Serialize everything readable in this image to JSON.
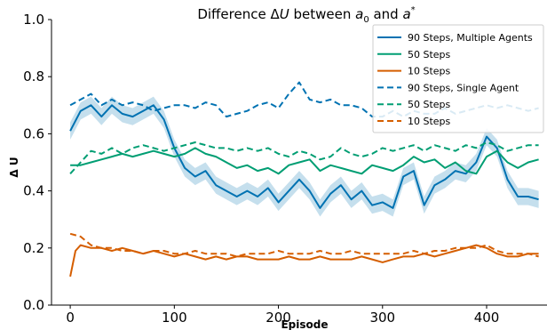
{
  "chart_data": {
    "type": "line",
    "title_parts": {
      "prefix": "Difference ",
      "delta_sym": "Δ",
      "u_sym": "U",
      "between": " between ",
      "a0_base": "a",
      "a0_sub": "0",
      "and": " and ",
      "astar_base": "a",
      "astar_sup": "*"
    },
    "xlabel": "Episode",
    "ylabel": "Δ U",
    "xlim": [
      -18,
      458
    ],
    "ylim": [
      0.0,
      1.0
    ],
    "xticks": [
      0,
      100,
      200,
      300,
      400
    ],
    "yticks": [
      0.0,
      0.2,
      0.4,
      0.6,
      0.8,
      1.0
    ],
    "ytick_labels": [
      "0.0",
      "0.2",
      "0.4",
      "0.6",
      "0.8",
      "1.0"
    ],
    "legend_position": "top-right",
    "colors": {
      "blue": "#0072B2",
      "green": "#009E73",
      "orange": "#D55E00",
      "band": "#9ecae1"
    },
    "series": [
      {
        "name": "90 Steps, Multiple Agents",
        "style": "solid",
        "color": "#0072B2",
        "band": 0.03,
        "x": [
          0,
          10,
          20,
          30,
          40,
          50,
          60,
          70,
          80,
          90,
          100,
          110,
          120,
          130,
          140,
          150,
          160,
          170,
          180,
          190,
          200,
          210,
          220,
          230,
          240,
          250,
          260,
          270,
          280,
          290,
          300,
          310,
          320,
          330,
          340,
          350,
          360,
          370,
          380,
          390,
          400,
          410,
          420,
          430,
          440,
          450
        ],
        "values": [
          0.61,
          0.68,
          0.7,
          0.66,
          0.7,
          0.67,
          0.66,
          0.68,
          0.7,
          0.65,
          0.55,
          0.48,
          0.45,
          0.47,
          0.42,
          0.4,
          0.38,
          0.4,
          0.38,
          0.41,
          0.36,
          0.4,
          0.44,
          0.4,
          0.34,
          0.39,
          0.42,
          0.37,
          0.4,
          0.35,
          0.36,
          0.34,
          0.45,
          0.47,
          0.35,
          0.42,
          0.44,
          0.47,
          0.46,
          0.5,
          0.59,
          0.55,
          0.44,
          0.38,
          0.38,
          0.37
        ]
      },
      {
        "name": "50 Steps",
        "style": "solid",
        "color": "#009E73",
        "x": [
          0,
          10,
          20,
          30,
          40,
          50,
          60,
          70,
          80,
          90,
          100,
          110,
          120,
          130,
          140,
          150,
          160,
          170,
          180,
          190,
          200,
          210,
          220,
          230,
          240,
          250,
          260,
          270,
          280,
          290,
          300,
          310,
          320,
          330,
          340,
          350,
          360,
          370,
          380,
          390,
          400,
          410,
          420,
          430,
          440,
          450
        ],
        "values": [
          0.49,
          0.49,
          0.5,
          0.51,
          0.52,
          0.53,
          0.52,
          0.53,
          0.54,
          0.53,
          0.52,
          0.53,
          0.55,
          0.53,
          0.52,
          0.5,
          0.48,
          0.49,
          0.47,
          0.48,
          0.46,
          0.49,
          0.5,
          0.51,
          0.47,
          0.49,
          0.48,
          0.47,
          0.46,
          0.49,
          0.48,
          0.47,
          0.49,
          0.52,
          0.5,
          0.51,
          0.48,
          0.5,
          0.47,
          0.46,
          0.52,
          0.54,
          0.5,
          0.48,
          0.5,
          0.51
        ]
      },
      {
        "name": "10 Steps",
        "style": "solid",
        "color": "#D55E00",
        "x": [
          0,
          5,
          10,
          20,
          30,
          40,
          50,
          60,
          70,
          80,
          90,
          100,
          110,
          120,
          130,
          140,
          150,
          160,
          170,
          180,
          190,
          200,
          210,
          220,
          230,
          240,
          250,
          260,
          270,
          280,
          290,
          300,
          310,
          320,
          330,
          340,
          350,
          360,
          370,
          380,
          390,
          400,
          410,
          420,
          430,
          440,
          450
        ],
        "values": [
          0.1,
          0.19,
          0.21,
          0.2,
          0.2,
          0.19,
          0.2,
          0.19,
          0.18,
          0.19,
          0.18,
          0.17,
          0.18,
          0.17,
          0.16,
          0.17,
          0.16,
          0.17,
          0.17,
          0.16,
          0.16,
          0.16,
          0.17,
          0.16,
          0.16,
          0.17,
          0.16,
          0.16,
          0.16,
          0.17,
          0.16,
          0.15,
          0.16,
          0.17,
          0.17,
          0.18,
          0.17,
          0.18,
          0.19,
          0.2,
          0.21,
          0.2,
          0.18,
          0.17,
          0.17,
          0.18,
          0.18
        ]
      },
      {
        "name": "90 Steps, Single Agent",
        "style": "dashed",
        "color": "#0072B2",
        "x": [
          0,
          10,
          20,
          30,
          40,
          50,
          60,
          70,
          80,
          90,
          100,
          110,
          120,
          130,
          140,
          150,
          160,
          170,
          180,
          190,
          200,
          210,
          220,
          230,
          240,
          250,
          260,
          270,
          280,
          290,
          300,
          310,
          320,
          330,
          340,
          350,
          360,
          370,
          380,
          390,
          400,
          410,
          420,
          430,
          440,
          450
        ],
        "values": [
          0.7,
          0.72,
          0.74,
          0.7,
          0.72,
          0.7,
          0.71,
          0.7,
          0.68,
          0.69,
          0.7,
          0.7,
          0.69,
          0.71,
          0.7,
          0.66,
          0.67,
          0.68,
          0.7,
          0.71,
          0.69,
          0.74,
          0.78,
          0.72,
          0.71,
          0.72,
          0.7,
          0.7,
          0.69,
          0.66,
          0.66,
          0.68,
          0.66,
          0.68,
          0.67,
          0.67,
          0.69,
          0.67,
          0.68,
          0.69,
          0.7,
          0.69,
          0.7,
          0.69,
          0.68,
          0.69
        ]
      },
      {
        "name": "50 Steps",
        "style": "dashed",
        "color": "#009E73",
        "x": [
          0,
          10,
          20,
          30,
          40,
          50,
          60,
          70,
          80,
          90,
          100,
          110,
          120,
          130,
          140,
          150,
          160,
          170,
          180,
          190,
          200,
          210,
          220,
          230,
          240,
          250,
          260,
          270,
          280,
          290,
          300,
          310,
          320,
          330,
          340,
          350,
          360,
          370,
          380,
          390,
          400,
          410,
          420,
          430,
          440,
          450
        ],
        "values": [
          0.46,
          0.5,
          0.54,
          0.53,
          0.55,
          0.53,
          0.55,
          0.56,
          0.55,
          0.54,
          0.55,
          0.56,
          0.57,
          0.56,
          0.55,
          0.55,
          0.54,
          0.55,
          0.54,
          0.55,
          0.53,
          0.52,
          0.54,
          0.53,
          0.51,
          0.52,
          0.55,
          0.53,
          0.52,
          0.53,
          0.55,
          0.54,
          0.55,
          0.56,
          0.54,
          0.56,
          0.55,
          0.54,
          0.56,
          0.55,
          0.57,
          0.56,
          0.54,
          0.55,
          0.56,
          0.56
        ]
      },
      {
        "name": "10 Steps",
        "style": "dashed",
        "color": "#D55E00",
        "x": [
          0,
          10,
          20,
          30,
          40,
          50,
          60,
          70,
          80,
          90,
          100,
          110,
          120,
          130,
          140,
          150,
          160,
          170,
          180,
          190,
          200,
          210,
          220,
          230,
          240,
          250,
          260,
          270,
          280,
          290,
          300,
          310,
          320,
          330,
          340,
          350,
          360,
          370,
          380,
          390,
          400,
          410,
          420,
          430,
          440,
          450
        ],
        "values": [
          0.25,
          0.24,
          0.21,
          0.2,
          0.2,
          0.19,
          0.19,
          0.18,
          0.19,
          0.19,
          0.18,
          0.18,
          0.19,
          0.18,
          0.18,
          0.18,
          0.17,
          0.18,
          0.18,
          0.18,
          0.19,
          0.18,
          0.18,
          0.18,
          0.19,
          0.18,
          0.18,
          0.19,
          0.18,
          0.18,
          0.18,
          0.18,
          0.18,
          0.19,
          0.18,
          0.19,
          0.19,
          0.2,
          0.2,
          0.2,
          0.21,
          0.19,
          0.18,
          0.18,
          0.18,
          0.17
        ]
      }
    ]
  }
}
